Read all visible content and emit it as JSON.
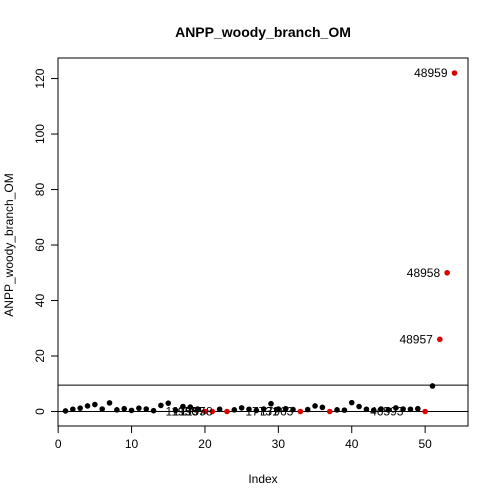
{
  "chart_data": {
    "type": "scatter",
    "title": "ANPP_woody_branch_OM",
    "xlabel": "Index",
    "ylabel": "ANPP_woody_branch_OM",
    "xlim": [
      0,
      54
    ],
    "ylim": [
      -4,
      125
    ],
    "x_ticks": [
      0,
      10,
      20,
      30,
      40,
      50
    ],
    "y_ticks": [
      0,
      20,
      40,
      60,
      80,
      100,
      120
    ],
    "grid": false,
    "hlines": [
      9.5,
      0
    ],
    "colors": {
      "normal": "#000000",
      "flagged": "#dd0000"
    },
    "points": [
      {
        "x": 1,
        "y": 0.2,
        "flag": false
      },
      {
        "x": 2,
        "y": 0.8,
        "flag": false
      },
      {
        "x": 3,
        "y": 1.2,
        "flag": false
      },
      {
        "x": 4,
        "y": 2.0,
        "flag": false
      },
      {
        "x": 5,
        "y": 2.5,
        "flag": false
      },
      {
        "x": 6,
        "y": 0.9,
        "flag": false
      },
      {
        "x": 7,
        "y": 3.1,
        "flag": false
      },
      {
        "x": 8,
        "y": 0.6,
        "flag": false
      },
      {
        "x": 9,
        "y": 1.0,
        "flag": false
      },
      {
        "x": 10,
        "y": 0.4,
        "flag": false
      },
      {
        "x": 11,
        "y": 1.2,
        "flag": false
      },
      {
        "x": 12,
        "y": 0.9,
        "flag": false
      },
      {
        "x": 13,
        "y": 0.3,
        "flag": false
      },
      {
        "x": 14,
        "y": 2.2,
        "flag": false
      },
      {
        "x": 15,
        "y": 3.0,
        "flag": false
      },
      {
        "x": 16,
        "y": 0.4,
        "flag": false
      },
      {
        "x": 17,
        "y": 1.8,
        "flag": false
      },
      {
        "x": 18,
        "y": 1.6,
        "flag": false
      },
      {
        "x": 19,
        "y": 0.9,
        "flag": false
      },
      {
        "x": 20,
        "y": 0.0,
        "flag": true
      },
      {
        "x": 21,
        "y": 0.0,
        "flag": true
      },
      {
        "x": 22,
        "y": 0.8,
        "flag": false
      },
      {
        "x": 23,
        "y": 0.0,
        "flag": true
      },
      {
        "x": 24,
        "y": 0.6,
        "flag": false
      },
      {
        "x": 25,
        "y": 1.3,
        "flag": false
      },
      {
        "x": 26,
        "y": 0.8,
        "flag": false
      },
      {
        "x": 27,
        "y": 0.4,
        "flag": false
      },
      {
        "x": 28,
        "y": 0.9,
        "flag": false
      },
      {
        "x": 29,
        "y": 2.8,
        "flag": false
      },
      {
        "x": 30,
        "y": 0.9,
        "flag": false
      },
      {
        "x": 31,
        "y": 1.0,
        "flag": false
      },
      {
        "x": 32,
        "y": 0.7,
        "flag": false
      },
      {
        "x": 33,
        "y": 0.0,
        "flag": true
      },
      {
        "x": 34,
        "y": 0.7,
        "flag": false
      },
      {
        "x": 35,
        "y": 2.0,
        "flag": false
      },
      {
        "x": 36,
        "y": 1.5,
        "flag": false
      },
      {
        "x": 37,
        "y": 0.0,
        "flag": true
      },
      {
        "x": 38,
        "y": 0.6,
        "flag": false
      },
      {
        "x": 39,
        "y": 0.5,
        "flag": false
      },
      {
        "x": 40,
        "y": 3.2,
        "flag": false
      },
      {
        "x": 41,
        "y": 1.8,
        "flag": false
      },
      {
        "x": 42,
        "y": 0.8,
        "flag": false
      },
      {
        "x": 43,
        "y": 0.5,
        "flag": false
      },
      {
        "x": 44,
        "y": 0.9,
        "flag": false
      },
      {
        "x": 45,
        "y": 0.6,
        "flag": false
      },
      {
        "x": 46,
        "y": 1.3,
        "flag": false
      },
      {
        "x": 47,
        "y": 0.9,
        "flag": false
      },
      {
        "x": 48,
        "y": 0.8,
        "flag": false
      },
      {
        "x": 49,
        "y": 1.0,
        "flag": false
      },
      {
        "x": 50,
        "y": 0.0,
        "flag": true
      },
      {
        "x": 51,
        "y": 9.2,
        "flag": false
      },
      {
        "x": 52,
        "y": 26.0,
        "flag": true
      },
      {
        "x": 53,
        "y": 50.0,
        "flag": true
      },
      {
        "x": 54,
        "y": 122.0,
        "flag": true
      }
    ],
    "annotations": [
      {
        "x": 54,
        "y": 122.0,
        "text": "48959"
      },
      {
        "x": 53,
        "y": 50.0,
        "text": "48958"
      },
      {
        "x": 52,
        "y": 26.0,
        "text": "48957"
      },
      {
        "x": 20,
        "y": 0.0,
        "text": "11956"
      },
      {
        "x": 21,
        "y": 0.0,
        "text": "11957"
      },
      {
        "x": 22,
        "y": 0.0,
        "text": "11958"
      },
      {
        "x": 31,
        "y": 0.0,
        "text": "17731"
      },
      {
        "x": 33,
        "y": 0.0,
        "text": "17963"
      },
      {
        "x": 48,
        "y": 0.0,
        "text": "46593"
      }
    ]
  }
}
